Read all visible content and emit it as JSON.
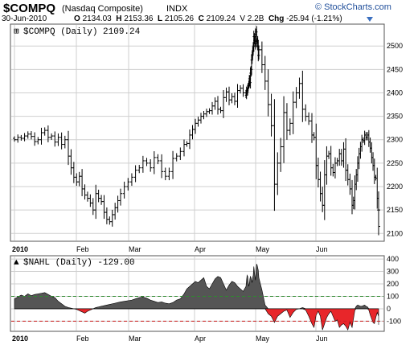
{
  "header": {
    "symbol": "$COMPQ",
    "name": "(Nasdaq Composite)",
    "class": "INDX",
    "date": "30-Jun-2010",
    "open_label": "O",
    "open": "2134.03",
    "high_label": "H",
    "high": "2153.36",
    "low_label": "L",
    "low": "2105.26",
    "close_label": "C",
    "close": "2109.24",
    "volume": "V 2.2B",
    "change_label": "Chg",
    "change": "-25.94 (-1.21%)",
    "brand": "© StockCharts.com"
  },
  "colors": {
    "price_bars": "#000000",
    "area_fill": "#555555",
    "negative_fill": "#e8262a",
    "upper_line": "#2e8b2e",
    "lower_line": "#cc2222",
    "grid": "#cfcfcf",
    "frame": "#555555"
  },
  "chart_data": [
    {
      "type": "ohlc",
      "title": "$COMPQ (Daily) 2109.24",
      "x_labels": [
        "2010",
        "Feb",
        "Mar",
        "Apr",
        "May",
        "Jun"
      ],
      "y_ticks": [
        2100,
        2150,
        2200,
        2250,
        2300,
        2350,
        2400,
        2450,
        2500
      ],
      "ylim": [
        2085,
        2545
      ],
      "grid": true,
      "series": [
        {
          "values": [
            2300,
            2305,
            2303,
            2308,
            2312,
            2307,
            2296,
            2300,
            2315,
            2320,
            2305,
            2308,
            2295,
            2305,
            2290,
            2300,
            2265,
            2240,
            2220,
            2210,
            2222,
            2195,
            2182,
            2175,
            2165,
            2150,
            2185,
            2175,
            2168,
            2145,
            2130,
            2125,
            2140,
            2155,
            2170,
            2185,
            2200,
            2210,
            2220,
            2235,
            2240,
            2255,
            2250,
            2240,
            2262,
            2255,
            2232,
            2222,
            2232,
            2260,
            2265,
            2275,
            2290,
            2292,
            2310,
            2322,
            2335,
            2342,
            2350,
            2355,
            2360,
            2362,
            2372,
            2382,
            2365,
            2362,
            2390,
            2402,
            2385,
            2392,
            2382,
            2405,
            2410,
            2400,
            2395,
            2405,
            2402,
            2410,
            2415,
            2420,
            2430,
            2422,
            2442,
            2450,
            2470,
            2480,
            2490,
            2500,
            2520,
            2512,
            2505,
            2525,
            2530,
            2510,
            2512,
            2500,
            2480,
            2492,
            2460,
            2425,
            2375,
            2330,
            2205,
            2250,
            2285,
            2358,
            2320,
            2335,
            2380,
            2400,
            2420,
            2365,
            2350,
            2340,
            2310,
            2305,
            2245,
            2215,
            2185,
            2160,
            2225,
            2265,
            2270,
            2240,
            2230,
            2250,
            2255,
            2270,
            2255,
            2280,
            2235,
            2215,
            2195,
            2160,
            2170,
            2205,
            2225,
            2250,
            2270,
            2285,
            2300,
            2298,
            2310,
            2305,
            2310,
            2295,
            2282,
            2262,
            2245,
            2220,
            2218,
            2175,
            2150,
            2115
          ]
        }
      ]
    },
    {
      "type": "area",
      "title": "$NAHL (Daily) -129.00",
      "x_labels": [
        "2010",
        "Feb",
        "Mar",
        "Apr",
        "May",
        "Jun"
      ],
      "y_ticks": [
        -100,
        0,
        100,
        200,
        300,
        400
      ],
      "ylim": [
        -175,
        420
      ],
      "reference_lines": [
        100,
        -100
      ],
      "grid": true,
      "series": [
        {
          "values": [
            80,
            95,
            110,
            100,
            120,
            105,
            115,
            120,
            125,
            130,
            115,
            100,
            90,
            60,
            40,
            20,
            10,
            5,
            0,
            -5,
            -15,
            -25,
            -35,
            -20,
            -10,
            0,
            10,
            15,
            20,
            25,
            30,
            35,
            40,
            45,
            50,
            55,
            60,
            65,
            70,
            80,
            90,
            95,
            85,
            70,
            60,
            50,
            55,
            45,
            40,
            50,
            70,
            80,
            120,
            160,
            180,
            200,
            220,
            210,
            230,
            250,
            180,
            160,
            200,
            240,
            260,
            250,
            200,
            150,
            190,
            220,
            210,
            180,
            160,
            140,
            180,
            230,
            270,
            260,
            220,
            180,
            200,
            240,
            260,
            250,
            230,
            210,
            250,
            270,
            340,
            300,
            260,
            230,
            300,
            360,
            350,
            330,
            310,
            250,
            150,
            30,
            -40,
            -60,
            -110,
            -60,
            -40,
            -20,
            -10,
            -70,
            -30,
            -5,
            0,
            10,
            -10,
            -60,
            -120,
            -150,
            -50,
            -20,
            -60,
            -170,
            -120,
            -70,
            -40,
            -20,
            -60,
            -100,
            -90,
            -150,
            -130,
            -120,
            -140,
            -170,
            -110,
            -150,
            -80,
            -10,
            20,
            30,
            25,
            20,
            20,
            25,
            30,
            20,
            15,
            -10,
            -50,
            -80,
            -110,
            -120,
            -70,
            -30,
            -60,
            -129
          ]
        }
      ]
    }
  ]
}
